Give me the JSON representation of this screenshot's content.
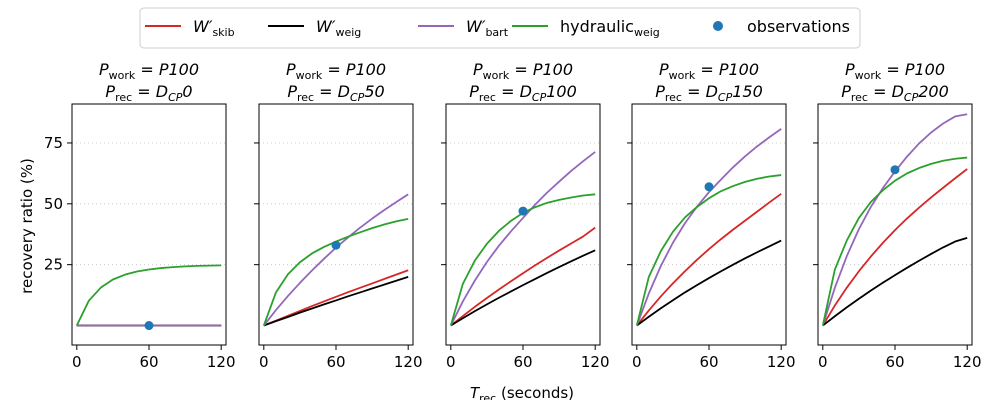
{
  "chart_data": {
    "type": "line",
    "ylabel": "recovery ratio (%)",
    "xlabel": "T",
    "xlabel_sub": "rec",
    "xlabel_suffix": " (seconds)",
    "x": [
      0,
      10,
      20,
      30,
      40,
      50,
      60,
      70,
      80,
      90,
      100,
      110,
      120
    ],
    "xlim": [
      -4,
      124
    ],
    "ylim": [
      -8,
      91
    ],
    "xticks": [
      0,
      60,
      120
    ],
    "yticks": [
      25,
      50,
      75
    ],
    "ytick_labels": [
      "25",
      "50",
      "75"
    ],
    "xtick_labels": [
      "0",
      "60",
      "120"
    ],
    "grid": "y-dotted",
    "legend": {
      "placement": "top-center",
      "entries": [
        {
          "key": "skib",
          "base": "W′",
          "sub": "skib",
          "color": "#d62728",
          "marker": "line"
        },
        {
          "key": "weig",
          "base": "W′",
          "sub": "weig",
          "color": "#000000",
          "marker": "line"
        },
        {
          "key": "bart",
          "base": "W′",
          "sub": "bart",
          "color": "#9467bd",
          "marker": "line"
        },
        {
          "key": "hyd",
          "base": "hydraulic",
          "sub": "weig",
          "color": "#2ca02c",
          "marker": "line"
        },
        {
          "key": "obs",
          "base": "observations",
          "sub": "",
          "color": "#1f77b4",
          "marker": "dot"
        }
      ]
    },
    "panels": [
      {
        "title_line1": "P_work = P100",
        "title_line2": "P_rec = D_CP 0",
        "t1_base": "P",
        "t1_sub": "work",
        "t1_rhs": " = P100",
        "t2_base": "P",
        "t2_sub": "rec",
        "t2_rhs_a": " = D",
        "t2_rhs_sub": "CP",
        "t2_rhs_b": "0",
        "show_yticklabels": true,
        "series": [
          {
            "name": "skib",
            "values": [
              0,
              0,
              0,
              0,
              0,
              0,
              0,
              0,
              0,
              0,
              0,
              0,
              0
            ]
          },
          {
            "name": "weig",
            "values": [
              0,
              0,
              0,
              0,
              0,
              0,
              0,
              0,
              0,
              0,
              0,
              0,
              0
            ]
          },
          {
            "name": "bart",
            "values": [
              0,
              0,
              0,
              0,
              0,
              0,
              0,
              0,
              0,
              0,
              0,
              0,
              0
            ]
          },
          {
            "name": "hyd",
            "values": [
              0,
              10.2,
              15.6,
              18.9,
              20.9,
              22.2,
              23.0,
              23.6,
              24.0,
              24.3,
              24.5,
              24.6,
              24.7
            ]
          }
        ],
        "observations": [
          {
            "x": 60,
            "y": 0
          }
        ]
      },
      {
        "title_line1": "P_work = P100",
        "title_line2": "P_rec = D_CP 50",
        "t1_base": "P",
        "t1_sub": "work",
        "t1_rhs": " = P100",
        "t2_base": "P",
        "t2_sub": "rec",
        "t2_rhs_a": " = D",
        "t2_rhs_sub": "CP",
        "t2_rhs_b": "50",
        "show_yticklabels": false,
        "series": [
          {
            "name": "skib",
            "values": [
              0,
              2.0,
              4.0,
              6.0,
              8.0,
              9.9,
              11.8,
              13.7,
              15.5,
              17.3,
              19.1,
              20.9,
              22.7
            ]
          },
          {
            "name": "weig",
            "values": [
              0,
              1.8,
              3.5,
              5.3,
              7.0,
              8.7,
              10.3,
              12.0,
              13.6,
              15.2,
              16.8,
              18.4,
              20.0
            ]
          },
          {
            "name": "bart",
            "values": [
              0,
              6.3,
              12.1,
              17.5,
              22.6,
              27.4,
              32.0,
              36.2,
              40.2,
              43.9,
              47.4,
              50.7,
              53.9
            ]
          },
          {
            "name": "hyd",
            "values": [
              0,
              13.5,
              21.0,
              26.0,
              29.6,
              32.3,
              34.5,
              36.5,
              38.3,
              40.0,
              41.5,
              42.8,
              43.8
            ]
          }
        ],
        "observations": [
          {
            "x": 60,
            "y": 33
          }
        ]
      },
      {
        "title_line1": "P_work = P100",
        "title_line2": "P_rec = D_CP 100",
        "t1_base": "P",
        "t1_sub": "work",
        "t1_rhs": " = P100",
        "t2_base": "P",
        "t2_sub": "rec",
        "t2_rhs_a": " = D",
        "t2_rhs_sub": "CP",
        "t2_rhs_b": "100",
        "show_yticklabels": false,
        "series": [
          {
            "name": "skib",
            "values": [
              0,
              3.9,
              7.7,
              11.3,
              14.8,
              18.2,
              21.5,
              24.7,
              27.8,
              30.8,
              33.7,
              36.6,
              40.2
            ]
          },
          {
            "name": "weig",
            "values": [
              0,
              3.0,
              5.9,
              8.7,
              11.4,
              14.0,
              16.6,
              19.1,
              21.6,
              24.0,
              26.4,
              28.7,
              30.9
            ]
          },
          {
            "name": "bart",
            "values": [
              0,
              9.9,
              18.5,
              26.1,
              32.8,
              38.7,
              44.2,
              49.6,
              54.6,
              59.1,
              63.5,
              67.5,
              71.3
            ]
          },
          {
            "name": "hyd",
            "values": [
              0,
              17.1,
              26.7,
              33.6,
              38.9,
              43.0,
              46.3,
              48.6,
              50.4,
              51.6,
              52.6,
              53.4,
              53.9
            ]
          }
        ],
        "observations": [
          {
            "x": 60,
            "y": 47
          }
        ]
      },
      {
        "title_line1": "P_work = P100",
        "title_line2": "P_rec = D_CP 150",
        "t1_base": "P",
        "t1_sub": "work",
        "t1_rhs": " = P100",
        "t2_base": "P",
        "t2_sub": "rec",
        "t2_rhs_a": " = D",
        "t2_rhs_sub": "CP",
        "t2_rhs_b": "150",
        "show_yticklabels": false,
        "series": [
          {
            "name": "skib",
            "values": [
              0,
              6.2,
              12.0,
              17.3,
              22.3,
              27.0,
              31.4,
              35.5,
              39.4,
              43.1,
              46.8,
              50.5,
              54.1
            ]
          },
          {
            "name": "weig",
            "values": [
              0,
              3.6,
              7.1,
              10.4,
              13.6,
              16.6,
              19.5,
              22.3,
              25.0,
              27.6,
              30.1,
              32.5,
              34.9
            ]
          },
          {
            "name": "bart",
            "values": [
              0,
              13.2,
              24.5,
              34.0,
              42.0,
              48.8,
              54.8,
              60.0,
              65.0,
              69.5,
              73.6,
              77.3,
              80.8
            ]
          },
          {
            "name": "hyd",
            "values": [
              0,
              20.0,
              30.6,
              38.5,
              44.4,
              48.7,
              52.3,
              55.2,
              57.3,
              59.0,
              60.3,
              61.2,
              61.8
            ]
          }
        ],
        "observations": [
          {
            "x": 60,
            "y": 57
          }
        ]
      },
      {
        "title_line1": "P_work = P100",
        "title_line2": "P_rec = D_CP 200",
        "t1_base": "P",
        "t1_sub": "work",
        "t1_rhs": " = P100",
        "t2_base": "P",
        "t2_sub": "rec",
        "t2_rhs_a": " = D",
        "t2_rhs_sub": "CP",
        "t2_rhs_b": "200",
        "show_yticklabels": false,
        "series": [
          {
            "name": "skib",
            "values": [
              0,
              8.2,
              15.6,
              22.3,
              28.4,
              34.0,
              39.2,
              44.0,
              48.4,
              52.6,
              56.6,
              60.5,
              64.3
            ]
          },
          {
            "name": "weig",
            "values": [
              0,
              3.8,
              7.5,
              11.0,
              14.4,
              17.6,
              20.7,
              23.7,
              26.6,
              29.4,
              32.1,
              34.5,
              36.0
            ]
          },
          {
            "name": "bart",
            "values": [
              0,
              15.5,
              28.6,
              39.6,
              48.8,
              56.5,
              63.3,
              69.4,
              74.8,
              79.3,
              83.0,
              85.9,
              86.8
            ]
          },
          {
            "name": "hyd",
            "values": [
              0,
              23.0,
              35.0,
              44.2,
              50.8,
              55.6,
              59.5,
              62.5,
              64.7,
              66.4,
              67.7,
              68.5,
              69.0
            ]
          }
        ],
        "observations": [
          {
            "x": 60,
            "y": 64
          }
        ]
      }
    ]
  }
}
